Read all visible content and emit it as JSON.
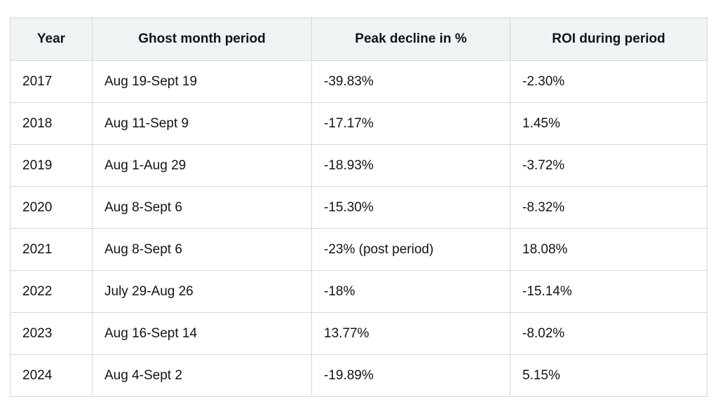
{
  "table": {
    "headers": [
      "Year",
      "Ghost month period",
      "Peak decline in %",
      "ROI during period"
    ],
    "rows": [
      [
        "2017",
        "Aug 19-Sept 19",
        "-39.83%",
        "-2.30%"
      ],
      [
        "2018",
        "Aug 11-Sept 9",
        "-17.17%",
        "1.45%"
      ],
      [
        "2019",
        "Aug 1-Aug 29",
        "-18.93%",
        "-3.72%"
      ],
      [
        "2020",
        "Aug 8-Sept 6",
        "-15.30%",
        "-8.32%"
      ],
      [
        "2021",
        "Aug 8-Sept 6",
        "-23% (post period)",
        "18.08%"
      ],
      [
        "2022",
        "July 29-Aug 26",
        "-18%",
        "-15.14%"
      ],
      [
        "2023",
        "Aug 16-Sept 14",
        "13.77%",
        "-8.02%"
      ],
      [
        "2024",
        "Aug 4-Sept 2",
        "-19.89%",
        "5.15%"
      ]
    ]
  },
  "colors": {
    "header_bg": "#eff3f4",
    "border": "#cfd9de",
    "text": "#0f1419"
  }
}
